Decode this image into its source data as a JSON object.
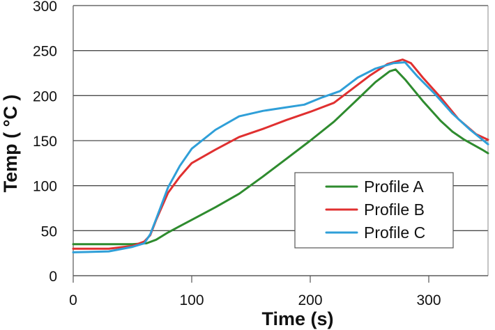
{
  "chart_data": {
    "type": "line",
    "title": "",
    "xlabel": "Time (s)",
    "ylabel": "Temp ( °C )",
    "xlim": [
      0,
      350
    ],
    "ylim": [
      0,
      300
    ],
    "xticks": [
      0,
      100,
      200,
      300
    ],
    "yticks": [
      0,
      50,
      100,
      150,
      200,
      250,
      300
    ],
    "grid": "horizontal",
    "legend_position": "lower-right",
    "series": [
      {
        "name": "Profile A",
        "color": "#2e8b2e",
        "points": [
          [
            0,
            35
          ],
          [
            30,
            35
          ],
          [
            50,
            35
          ],
          [
            62,
            36
          ],
          [
            70,
            40
          ],
          [
            80,
            48
          ],
          [
            100,
            62
          ],
          [
            120,
            76
          ],
          [
            140,
            91
          ],
          [
            160,
            110
          ],
          [
            180,
            130
          ],
          [
            200,
            150
          ],
          [
            220,
            171
          ],
          [
            240,
            196
          ],
          [
            255,
            215
          ],
          [
            267,
            227
          ],
          [
            272,
            229
          ],
          [
            280,
            218
          ],
          [
            295,
            194
          ],
          [
            310,
            172
          ],
          [
            320,
            160
          ],
          [
            330,
            151
          ],
          [
            345,
            140
          ],
          [
            350,
            136
          ]
        ]
      },
      {
        "name": "Profile B",
        "color": "#e03030",
        "points": [
          [
            0,
            30
          ],
          [
            30,
            30
          ],
          [
            50,
            33
          ],
          [
            60,
            38
          ],
          [
            65,
            45
          ],
          [
            70,
            62
          ],
          [
            80,
            92
          ],
          [
            90,
            110
          ],
          [
            100,
            125
          ],
          [
            120,
            140
          ],
          [
            140,
            154
          ],
          [
            160,
            163
          ],
          [
            180,
            173
          ],
          [
            200,
            182
          ],
          [
            220,
            192
          ],
          [
            235,
            207
          ],
          [
            250,
            222
          ],
          [
            265,
            235
          ],
          [
            278,
            240
          ],
          [
            285,
            236
          ],
          [
            295,
            220
          ],
          [
            310,
            198
          ],
          [
            325,
            174
          ],
          [
            340,
            157
          ],
          [
            350,
            151
          ]
        ]
      },
      {
        "name": "Profile C",
        "color": "#2f9fd8",
        "points": [
          [
            0,
            26
          ],
          [
            30,
            27
          ],
          [
            50,
            32
          ],
          [
            60,
            36
          ],
          [
            65,
            46
          ],
          [
            70,
            63
          ],
          [
            80,
            98
          ],
          [
            90,
            122
          ],
          [
            100,
            141
          ],
          [
            120,
            162
          ],
          [
            140,
            177
          ],
          [
            160,
            183
          ],
          [
            180,
            187
          ],
          [
            195,
            190
          ],
          [
            210,
            198
          ],
          [
            225,
            205
          ],
          [
            240,
            220
          ],
          [
            255,
            230
          ],
          [
            270,
            236
          ],
          [
            280,
            237
          ],
          [
            290,
            222
          ],
          [
            305,
            202
          ],
          [
            320,
            180
          ],
          [
            335,
            162
          ],
          [
            350,
            146
          ]
        ]
      }
    ]
  }
}
